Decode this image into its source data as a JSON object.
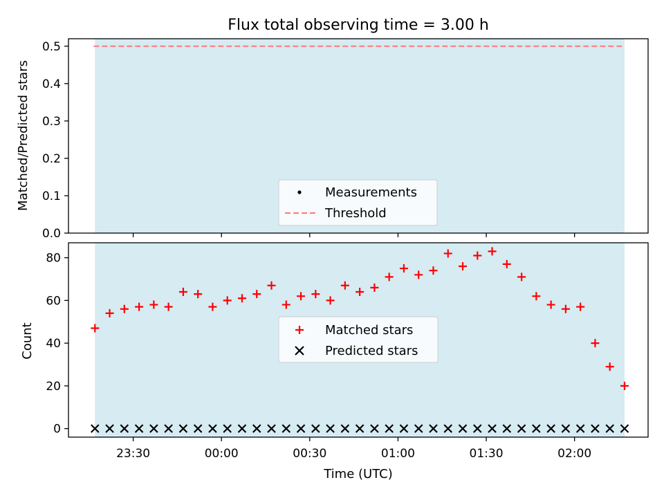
{
  "chart_data": [
    {
      "type": "line",
      "title": "Flux total observing time = 3.00 h",
      "xlabel": "",
      "ylabel": "Matched/Predicted stars",
      "ylim": [
        0,
        0.52
      ],
      "yticks": [
        "0.0",
        "0.1",
        "0.2",
        "0.3",
        "0.4",
        "0.5"
      ],
      "ytick_values": [
        0.0,
        0.1,
        0.2,
        0.3,
        0.4,
        0.5
      ],
      "threshold": 0.5,
      "shaded_span": [
        "23:17",
        "02:17"
      ],
      "grid": false,
      "legend": {
        "placement": "lower center",
        "entries": [
          "Measurements",
          "Threshold"
        ]
      },
      "series": [
        {
          "name": "Measurements",
          "values": []
        },
        {
          "name": "Threshold",
          "values": [
            0.5
          ]
        }
      ],
      "colors": {
        "span": "#add8e6",
        "threshold": "#ff7f7f",
        "points": "#000000"
      }
    },
    {
      "type": "scatter",
      "title": "",
      "xlabel": "Time (UTC)",
      "ylabel": "Count",
      "ylim": [
        -4,
        87
      ],
      "yticks": [
        "0",
        "20",
        "40",
        "60",
        "80"
      ],
      "ytick_values": [
        0,
        20,
        40,
        60,
        80
      ],
      "xlim": [
        "23:08",
        "02:25"
      ],
      "xticks": [
        "23:30",
        "00:00",
        "00:30",
        "01:00",
        "01:30",
        "02:00"
      ],
      "grid": false,
      "legend": {
        "placement": "center",
        "entries": [
          "Matched stars",
          "Predicted stars"
        ]
      },
      "x": [
        "23:17",
        "23:22",
        "23:27",
        "23:32",
        "23:37",
        "23:42",
        "23:47",
        "23:52",
        "23:57",
        "00:02",
        "00:07",
        "00:12",
        "00:17",
        "00:22",
        "00:27",
        "00:32",
        "00:37",
        "00:42",
        "00:47",
        "00:52",
        "00:57",
        "01:02",
        "01:07",
        "01:12",
        "01:17",
        "01:22",
        "01:27",
        "01:32",
        "01:37",
        "01:42",
        "01:47",
        "01:52",
        "01:57",
        "02:02",
        "02:07",
        "02:12",
        "02:17"
      ],
      "series": [
        {
          "name": "Matched stars",
          "values": [
            47,
            54,
            56,
            57,
            58,
            57,
            64,
            63,
            57,
            60,
            61,
            63,
            67,
            58,
            62,
            63,
            60,
            67,
            64,
            66,
            71,
            75,
            72,
            74,
            82,
            76,
            81,
            83,
            77,
            71,
            62,
            58,
            56,
            57,
            40,
            29,
            20
          ]
        },
        {
          "name": "Predicted stars",
          "values": [
            0,
            0,
            0,
            0,
            0,
            0,
            0,
            0,
            0,
            0,
            0,
            0,
            0,
            0,
            0,
            0,
            0,
            0,
            0,
            0,
            0,
            0,
            0,
            0,
            0,
            0,
            0,
            0,
            0,
            0,
            0,
            0,
            0,
            0,
            0,
            0,
            0
          ]
        }
      ],
      "colors": {
        "span": "#add8e6",
        "matched": "#ff0000",
        "predicted": "#000000"
      }
    }
  ]
}
